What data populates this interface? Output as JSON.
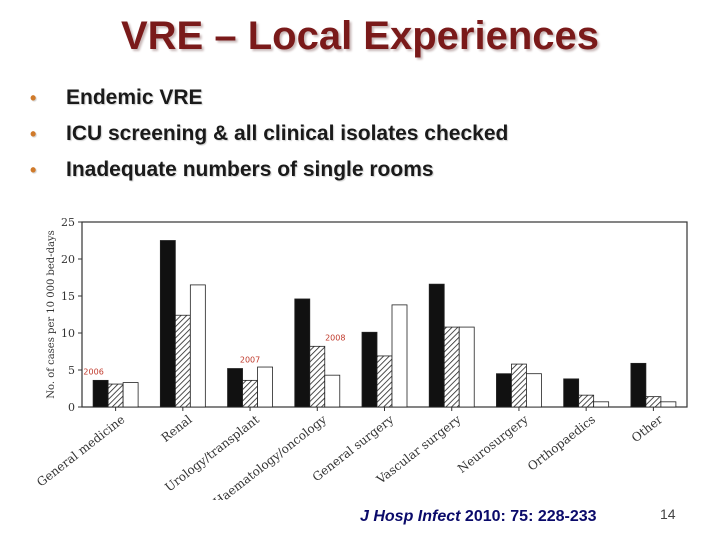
{
  "slide": {
    "title": "VRE – Local Experiences",
    "bullets": [
      "Endemic VRE",
      "ICU screening & all clinical isolates checked",
      "Inadequate numbers of single rooms"
    ],
    "citation_journal": "J Hosp Infect",
    "citation_rest": " 2010: 75: 228-233",
    "page_number": "14"
  },
  "colors": {
    "title": "#7a1a1a",
    "bullet": "#d07a2a",
    "citation": "#0a0a6a",
    "annotation": "#c0392b"
  },
  "chart_data": {
    "type": "bar",
    "ylabel": "No. of cases per 10 000 bed-days",
    "ylim": [
      0,
      25
    ],
    "yticks": [
      0,
      5,
      10,
      15,
      20,
      25
    ],
    "categories": [
      "General medicine",
      "Renal",
      "Urology/transplant",
      "Haematology/oncology",
      "General surgery",
      "Vascular surgery",
      "Neurosurgery",
      "Orthopaedics",
      "Other"
    ],
    "series": [
      {
        "name": "2006",
        "fill": "solid",
        "values": [
          3.6,
          22.5,
          5.2,
          14.6,
          10.1,
          16.6,
          4.5,
          3.8,
          5.9
        ]
      },
      {
        "name": "2007",
        "fill": "hatched",
        "values": [
          3.1,
          12.4,
          3.6,
          8.2,
          6.9,
          10.8,
          5.8,
          1.6,
          1.4
        ]
      },
      {
        "name": "2008",
        "fill": "open",
        "values": [
          3.3,
          16.5,
          5.4,
          4.3,
          13.8,
          10.8,
          4.5,
          0.7,
          0.7
        ]
      }
    ],
    "annotations": [
      "2006",
      "2007",
      "2008"
    ],
    "grid": false,
    "legend": "none"
  }
}
